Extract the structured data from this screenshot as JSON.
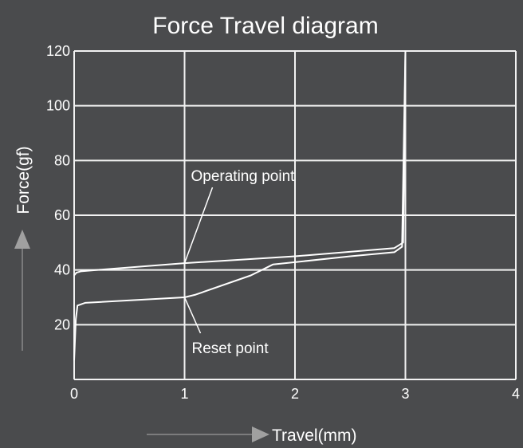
{
  "chart_data": {
    "type": "line",
    "title": "Force Travel diagram",
    "xlabel": "Travel(mm)",
    "ylabel": "Force(gf)",
    "xlim": [
      0,
      4
    ],
    "ylim": [
      0,
      120
    ],
    "x_ticks": [
      "0",
      "1",
      "2",
      "3",
      "4"
    ],
    "y_ticks": [
      "20",
      "40",
      "60",
      "80",
      "100",
      "120"
    ],
    "grid": true,
    "series": [
      {
        "id": "press",
        "x": [
          0,
          0.02,
          0.06,
          0.2,
          1.0,
          2.0,
          2.9,
          2.98,
          3.0
        ],
        "y": [
          38,
          39,
          39.5,
          40,
          42.5,
          45,
          48,
          50,
          120
        ]
      },
      {
        "id": "release",
        "x": [
          0,
          0.015,
          0.03,
          0.1,
          1.0,
          1.1,
          1.6,
          1.8,
          2.5,
          2.9,
          2.97,
          3.0
        ],
        "y": [
          7,
          22,
          27,
          28,
          30,
          31,
          38,
          42,
          45,
          46.5,
          48.5,
          120
        ]
      }
    ],
    "annotations": [
      {
        "text": "Operating point",
        "x": 1.0,
        "y": 42.5
      },
      {
        "text": "Reset point",
        "x": 1.0,
        "y": 30
      }
    ]
  }
}
